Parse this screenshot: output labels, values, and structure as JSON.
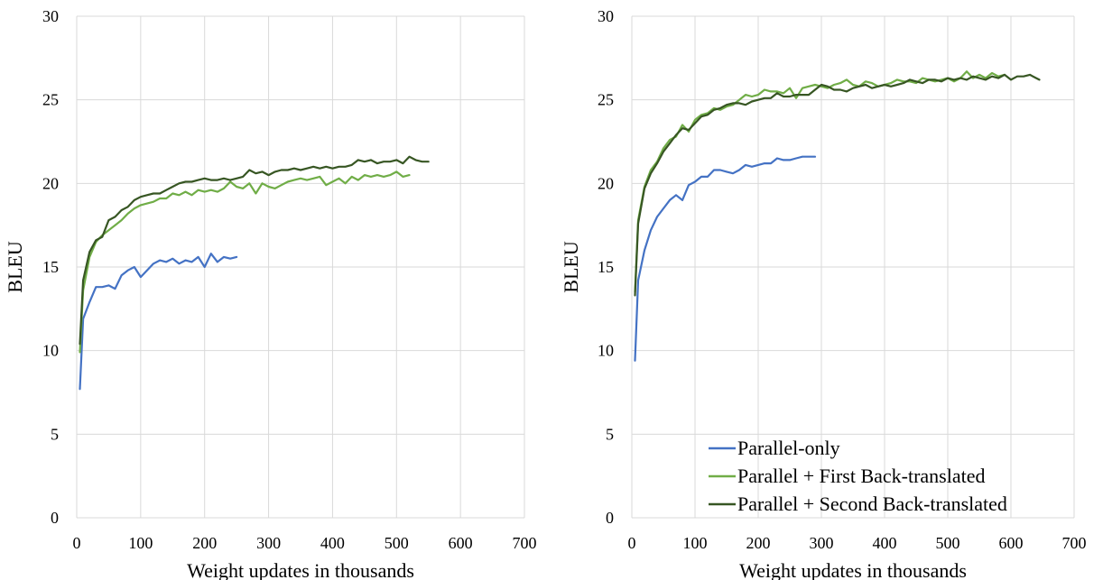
{
  "chart_data": [
    {
      "type": "line",
      "title": "",
      "xlabel": "Weight updates in thousands",
      "ylabel": "BLEU",
      "xlim": [
        0,
        700
      ],
      "ylim": [
        0,
        30
      ],
      "xticks": [
        0,
        100,
        200,
        300,
        400,
        500,
        600,
        700
      ],
      "yticks": [
        0,
        5,
        10,
        15,
        20,
        25,
        30
      ],
      "grid": true,
      "legend": "none",
      "series": [
        {
          "name": "Parallel-only",
          "color": "#4472c4",
          "x": [
            5,
            10,
            20,
            30,
            40,
            50,
            60,
            70,
            80,
            90,
            100,
            110,
            120,
            130,
            140,
            150,
            160,
            170,
            180,
            190,
            200,
            210,
            220,
            230,
            240,
            250
          ],
          "y": [
            7.7,
            11.9,
            12.9,
            13.8,
            13.8,
            13.9,
            13.7,
            14.5,
            14.8,
            15.0,
            14.4,
            14.8,
            15.2,
            15.4,
            15.3,
            15.5,
            15.2,
            15.4,
            15.3,
            15.6,
            15.0,
            15.8,
            15.3,
            15.6,
            15.5,
            15.6
          ]
        },
        {
          "name": "Parallel + First Back-translated",
          "color": "#70ad47",
          "x": [
            5,
            10,
            20,
            30,
            40,
            50,
            60,
            70,
            80,
            90,
            100,
            110,
            120,
            130,
            140,
            150,
            160,
            170,
            180,
            190,
            200,
            210,
            220,
            230,
            240,
            250,
            260,
            270,
            280,
            290,
            300,
            310,
            320,
            330,
            340,
            350,
            360,
            370,
            380,
            390,
            400,
            410,
            420,
            430,
            440,
            450,
            460,
            470,
            480,
            490,
            500,
            510,
            520
          ],
          "y": [
            9.9,
            13.6,
            15.6,
            16.5,
            16.9,
            17.2,
            17.5,
            17.8,
            18.2,
            18.5,
            18.7,
            18.8,
            18.9,
            19.1,
            19.1,
            19.4,
            19.3,
            19.5,
            19.3,
            19.6,
            19.5,
            19.6,
            19.5,
            19.7,
            20.1,
            19.8,
            19.7,
            20.0,
            19.4,
            20.0,
            19.8,
            19.7,
            19.9,
            20.1,
            20.2,
            20.3,
            20.2,
            20.3,
            20.4,
            19.9,
            20.1,
            20.3,
            20.0,
            20.4,
            20.2,
            20.5,
            20.4,
            20.5,
            20.4,
            20.5,
            20.7,
            20.4,
            20.5
          ]
        },
        {
          "name": "Parallel + Second Back-translated",
          "color": "#375623",
          "x": [
            5,
            10,
            20,
            30,
            40,
            50,
            60,
            70,
            80,
            90,
            100,
            110,
            120,
            130,
            140,
            150,
            160,
            170,
            180,
            190,
            200,
            210,
            220,
            230,
            240,
            250,
            260,
            270,
            280,
            290,
            300,
            310,
            320,
            330,
            340,
            350,
            360,
            370,
            380,
            390,
            400,
            410,
            420,
            430,
            440,
            450,
            460,
            470,
            480,
            490,
            500,
            510,
            520,
            530,
            540,
            550
          ],
          "y": [
            10.4,
            14.2,
            15.9,
            16.6,
            16.8,
            17.8,
            18.0,
            18.4,
            18.6,
            19.0,
            19.2,
            19.3,
            19.4,
            19.4,
            19.6,
            19.8,
            20.0,
            20.1,
            20.1,
            20.2,
            20.3,
            20.2,
            20.2,
            20.3,
            20.2,
            20.3,
            20.4,
            20.8,
            20.6,
            20.7,
            20.5,
            20.7,
            20.8,
            20.8,
            20.9,
            20.8,
            20.9,
            21.0,
            20.9,
            21.0,
            20.9,
            21.0,
            21.0,
            21.1,
            21.4,
            21.3,
            21.4,
            21.2,
            21.3,
            21.3,
            21.4,
            21.2,
            21.6,
            21.4,
            21.3,
            21.3
          ]
        }
      ]
    },
    {
      "type": "line",
      "title": "",
      "xlabel": "Weight updates in thousands",
      "ylabel": "BLEU",
      "xlim": [
        0,
        700
      ],
      "ylim": [
        0,
        30
      ],
      "xticks": [
        0,
        100,
        200,
        300,
        400,
        500,
        600,
        700
      ],
      "yticks": [
        0,
        5,
        10,
        15,
        20,
        25,
        30
      ],
      "grid": true,
      "legend": "bottom-right",
      "series": [
        {
          "name": "Parallel-only",
          "color": "#4472c4",
          "x": [
            5,
            10,
            20,
            30,
            40,
            50,
            60,
            70,
            80,
            90,
            100,
            110,
            120,
            130,
            140,
            150,
            160,
            170,
            180,
            190,
            200,
            210,
            220,
            230,
            240,
            250,
            260,
            270,
            280,
            290
          ],
          "y": [
            9.4,
            14.2,
            16.0,
            17.2,
            18.0,
            18.5,
            19.0,
            19.3,
            19.0,
            19.9,
            20.1,
            20.4,
            20.4,
            20.8,
            20.8,
            20.7,
            20.6,
            20.8,
            21.1,
            21.0,
            21.1,
            21.2,
            21.2,
            21.5,
            21.4,
            21.4,
            21.5,
            21.6,
            21.6,
            21.6
          ]
        },
        {
          "name": "Parallel + First Back-translated",
          "color": "#70ad47",
          "x": [
            5,
            10,
            20,
            30,
            40,
            50,
            60,
            70,
            80,
            90,
            100,
            110,
            120,
            130,
            140,
            150,
            160,
            170,
            180,
            190,
            200,
            210,
            220,
            230,
            240,
            250,
            260,
            270,
            280,
            290,
            300,
            310,
            320,
            330,
            340,
            350,
            360,
            370,
            380,
            390,
            400,
            410,
            420,
            430,
            440,
            450,
            460,
            470,
            480,
            490,
            500,
            510,
            520,
            530,
            540,
            550,
            560,
            570,
            580,
            590
          ],
          "y": [
            13.5,
            17.8,
            19.8,
            20.8,
            21.3,
            22.1,
            22.6,
            22.8,
            23.5,
            23.1,
            23.8,
            24.1,
            24.2,
            24.5,
            24.4,
            24.6,
            24.7,
            25.0,
            25.3,
            25.2,
            25.3,
            25.6,
            25.5,
            25.5,
            25.4,
            25.7,
            25.1,
            25.7,
            25.8,
            25.9,
            25.8,
            25.7,
            25.9,
            26.0,
            26.2,
            25.9,
            25.8,
            26.1,
            26.0,
            25.8,
            25.9,
            26.0,
            26.2,
            26.1,
            26.1,
            26.0,
            26.3,
            26.2,
            26.1,
            26.2,
            26.3,
            26.1,
            26.3,
            26.7,
            26.3,
            26.5,
            26.3,
            26.6,
            26.4,
            26.5
          ]
        },
        {
          "name": "Parallel + Second Back-translated",
          "color": "#375623",
          "x": [
            5,
            10,
            20,
            30,
            40,
            50,
            60,
            70,
            80,
            90,
            100,
            110,
            120,
            130,
            140,
            150,
            160,
            170,
            180,
            190,
            200,
            210,
            220,
            230,
            240,
            250,
            260,
            270,
            280,
            290,
            300,
            310,
            320,
            330,
            340,
            350,
            360,
            370,
            380,
            390,
            400,
            410,
            420,
            430,
            440,
            450,
            460,
            470,
            480,
            490,
            500,
            510,
            520,
            530,
            540,
            550,
            560,
            570,
            580,
            590,
            600,
            610,
            620,
            630,
            640,
            645
          ],
          "y": [
            13.3,
            17.6,
            19.7,
            20.6,
            21.2,
            21.9,
            22.4,
            22.9,
            23.3,
            23.2,
            23.6,
            24.0,
            24.1,
            24.4,
            24.5,
            24.7,
            24.8,
            24.8,
            24.7,
            24.9,
            25.0,
            25.1,
            25.1,
            25.4,
            25.2,
            25.2,
            25.3,
            25.3,
            25.3,
            25.6,
            25.9,
            25.8,
            25.6,
            25.6,
            25.5,
            25.7,
            25.8,
            25.9,
            25.7,
            25.8,
            25.9,
            25.8,
            25.9,
            26.0,
            26.2,
            26.1,
            26.0,
            26.2,
            26.2,
            26.1,
            26.3,
            26.2,
            26.3,
            26.2,
            26.4,
            26.3,
            26.2,
            26.4,
            26.3,
            26.5,
            26.2,
            26.4,
            26.4,
            26.5,
            26.3,
            26.2
          ]
        }
      ]
    }
  ]
}
